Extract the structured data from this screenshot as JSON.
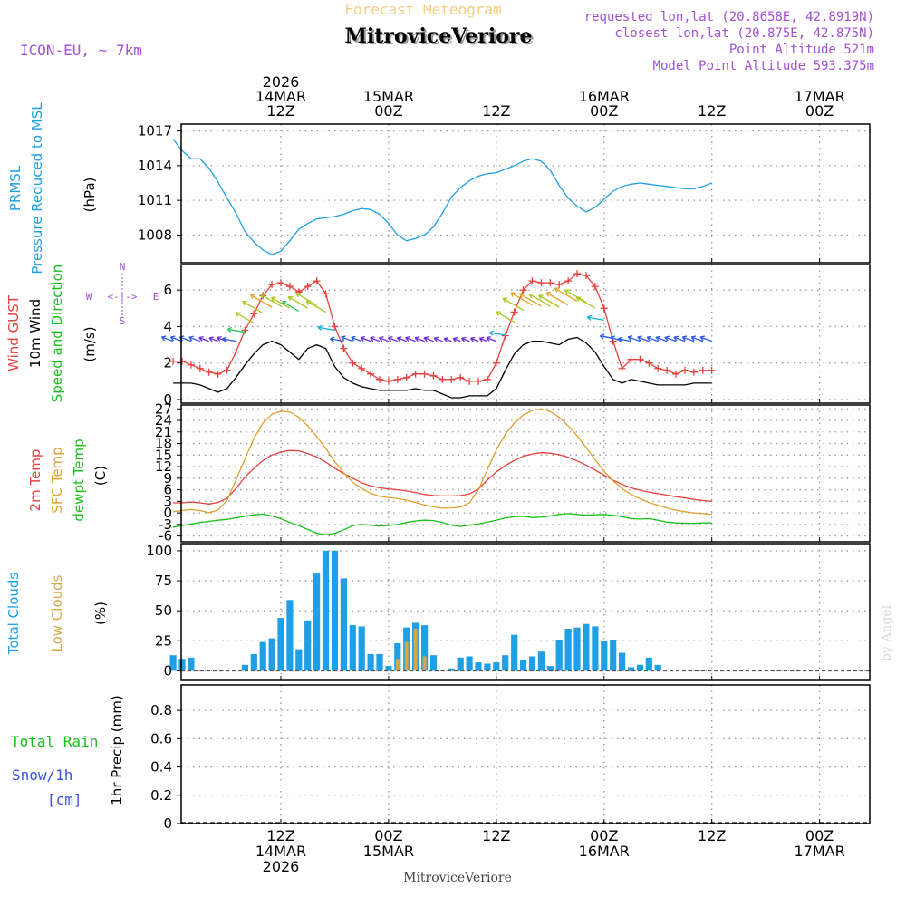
{
  "header": {
    "subtitle": "Forecast Meteogram",
    "title": "MitroviceVeriore",
    "model": "ICON-EU, ~ 7km",
    "info_lines": [
      "requested lon,lat (20.8658E, 42.8919N)",
      "closest lon,lat (20.875E, 42.875N)",
      "Point Altitude 521m",
      "Model Point Altitude 593.375m"
    ],
    "footer_name": "MitroviceVeriore",
    "watermark": "by Angel"
  },
  "colors": {
    "pressure": "#1e9fe6",
    "gust": "#e8403c",
    "wind10m": "#000000",
    "temp2m": "#e8403c",
    "sfc": "#e0a030",
    "dewpt": "#18c018",
    "total_cloud": "#1e9fe6",
    "low_cloud": "#d4a84a",
    "purple": "#a24fd6",
    "green": "#18c018",
    "blue": "#3a55e0"
  },
  "chart_data": {
    "type": "meteogram",
    "x_hours": [
      -12,
      48
    ],
    "top_ticks": [
      {
        "h": 0,
        "lines": [
          "2026",
          "14MAR",
          "12Z"
        ]
      },
      {
        "h": 12,
        "lines": [
          "15MAR",
          "00Z"
        ]
      },
      {
        "h": 24,
        "lines": [
          "12Z"
        ]
      },
      {
        "h": 36,
        "lines": [
          "16MAR",
          "00Z"
        ]
      },
      {
        "h": 48,
        "lines": [
          "12Z"
        ]
      },
      {
        "h": 60,
        "lines": [
          "17MAR",
          "00Z"
        ]
      }
    ],
    "bottom_ticks": [
      {
        "h": 0,
        "lines": [
          "12Z",
          "14MAR",
          "2026"
        ]
      },
      {
        "h": 12,
        "lines": [
          "00Z",
          "15MAR"
        ]
      },
      {
        "h": 24,
        "lines": [
          "12Z"
        ]
      },
      {
        "h": 36,
        "lines": [
          "00Z",
          "16MAR"
        ]
      },
      {
        "h": 48,
        "lines": [
          "12Z"
        ]
      },
      {
        "h": 60,
        "lines": [
          "00Z",
          "17MAR"
        ]
      }
    ],
    "panels": [
      {
        "id": "pressure",
        "labels": [
          "PRMSL",
          "Pressure Reduced to MSL"
        ],
        "units": "(hPa)",
        "ylim": [
          1005.6,
          1017.6
        ],
        "yticks": [
          1008,
          1011,
          1014,
          1017
        ],
        "series": [
          {
            "name": "PRMSL",
            "color": "#1e9fe6",
            "values": [
              1016.3,
              1015.3,
              1014.6,
              1014.6,
              1013.8,
              1012.6,
              1011.2,
              1009.9,
              1008.3,
              1007.4,
              1006.7,
              1006.3,
              1006.6,
              1007.5,
              1008.5,
              1009.0,
              1009.4,
              1009.5,
              1009.6,
              1009.8,
              1010.1,
              1010.3,
              1010.2,
              1009.8,
              1009.0,
              1008.0,
              1007.5,
              1007.7,
              1008.0,
              1008.7,
              1009.9,
              1011.3,
              1012.1,
              1012.7,
              1013.1,
              1013.3,
              1013.4,
              1013.7,
              1014.0,
              1014.4,
              1014.6,
              1014.4,
              1013.6,
              1012.3,
              1011.2,
              1010.5,
              1010.0,
              1010.4,
              1011.1,
              1011.8,
              1012.2,
              1012.4,
              1012.5,
              1012.4,
              1012.3,
              1012.2,
              1012.1,
              1012.0,
              1012.0,
              1012.2,
              1012.5
            ]
          }
        ]
      },
      {
        "id": "wind",
        "labels": [
          "Wind GUST",
          "10m Wind",
          "Speed and Direction"
        ],
        "units": "(m/s)",
        "ylim": [
          -0.2,
          7.4
        ],
        "yticks": [
          0,
          2,
          4,
          6
        ],
        "compass": {
          "n": "N",
          "s": "S",
          "w": "W",
          "e": "E",
          "axis": "<-|->"
        },
        "series": [
          {
            "name": "Wind GUST",
            "color": "#e8403c",
            "values": [
              2.1,
              2.1,
              1.9,
              1.7,
              1.5,
              1.4,
              1.6,
              2.6,
              3.8,
              4.7,
              5.7,
              6.3,
              6.4,
              6.2,
              5.9,
              6.2,
              6.5,
              5.8,
              4.0,
              2.8,
              2.0,
              1.7,
              1.4,
              1.1,
              1.0,
              1.1,
              1.2,
              1.4,
              1.4,
              1.3,
              1.1,
              1.1,
              1.2,
              1.0,
              1.0,
              1.1,
              2.0,
              3.5,
              4.8,
              6.0,
              6.5,
              6.4,
              6.4,
              6.3,
              6.5,
              6.9,
              6.8,
              6.2,
              5.0,
              3.2,
              1.7,
              2.2,
              2.2,
              2.0,
              1.7,
              1.6,
              1.4,
              1.6,
              1.5,
              1.6,
              1.6
            ]
          },
          {
            "name": "10m Wind",
            "color": "#000000",
            "values": [
              0.9,
              0.9,
              0.9,
              0.8,
              0.6,
              0.4,
              0.6,
              1.2,
              1.9,
              2.5,
              3.0,
              3.2,
              3.0,
              2.6,
              2.2,
              2.8,
              3.0,
              2.8,
              1.8,
              1.2,
              0.9,
              0.7,
              0.6,
              0.5,
              0.5,
              0.5,
              0.5,
              0.6,
              0.5,
              0.5,
              0.3,
              0.1,
              0.1,
              0.2,
              0.2,
              0.2,
              0.6,
              1.6,
              2.5,
              3.0,
              3.2,
              3.2,
              3.1,
              3.0,
              3.3,
              3.4,
              3.1,
              2.6,
              1.8,
              1.1,
              0.9,
              1.1,
              1.0,
              0.9,
              0.8,
              0.8,
              0.8,
              0.8,
              0.9,
              0.9,
              0.9
            ]
          }
        ]
      },
      {
        "id": "temp",
        "labels": [
          "2m Temp",
          "SFC Temp",
          "dewpt Temp"
        ],
        "units": "(C)",
        "ylim": [
          -7.5,
          28
        ],
        "yticks": [
          -6,
          -3,
          0,
          3,
          6,
          9,
          12,
          15,
          18,
          21,
          24,
          27
        ],
        "series": [
          {
            "name": "2m Temp",
            "color": "#e8403c",
            "values": [
              2.6,
              2.6,
              2.8,
              2.6,
              2.3,
              2.7,
              3.8,
              6.3,
              9.3,
              11.6,
              13.6,
              15.0,
              15.8,
              16.2,
              16.1,
              15.4,
              14.5,
              13.2,
              11.6,
              10.2,
              9.0,
              7.8,
              7.0,
              6.5,
              6.2,
              6.0,
              5.7,
              5.3,
              4.8,
              4.5,
              4.4,
              4.4,
              4.5,
              4.9,
              6.2,
              8.5,
              10.6,
              12.3,
              13.6,
              14.7,
              15.3,
              15.6,
              15.5,
              15.1,
              14.4,
              13.5,
              12.4,
              11.1,
              9.8,
              8.5,
              7.4,
              6.5,
              5.9,
              5.4,
              5.0,
              4.6,
              4.2,
              3.9,
              3.5,
              3.2,
              3.0
            ]
          },
          {
            "name": "SFC Temp",
            "color": "#e0a030",
            "values": [
              0.3,
              0.6,
              0.9,
              0.6,
              0.1,
              0.7,
              3.2,
              8.5,
              14.0,
              19.3,
              23.3,
              25.6,
              26.4,
              26.2,
              24.8,
              22.6,
              19.8,
              16.7,
              13.3,
              10.4,
              8.0,
              6.3,
              5.1,
              4.3,
              4.0,
              3.7,
              3.3,
              2.7,
              2.1,
              1.6,
              1.2,
              1.3,
              1.5,
              2.6,
              6.0,
              11.2,
              16.3,
              20.4,
              23.3,
              25.4,
              26.6,
              27.0,
              26.3,
              24.8,
              22.6,
              20.0,
              17.0,
              13.8,
              10.8,
              8.3,
              6.3,
              4.8,
              3.7,
              2.7,
              2.0,
              1.3,
              0.7,
              0.3,
              0.0,
              -0.2,
              -0.4
            ]
          },
          {
            "name": "dewpt Temp",
            "color": "#18c018",
            "values": [
              -3.7,
              -3.3,
              -2.9,
              -2.5,
              -2.2,
              -1.9,
              -1.7,
              -1.3,
              -0.9,
              -0.5,
              -0.3,
              -0.8,
              -1.5,
              -2.5,
              -3.3,
              -4.3,
              -5.3,
              -5.7,
              -5.3,
              -4.4,
              -3.3,
              -3.0,
              -3.2,
              -3.4,
              -3.3,
              -3.0,
              -2.5,
              -2.1,
              -1.9,
              -2.0,
              -2.5,
              -3.2,
              -3.5,
              -3.2,
              -2.9,
              -2.4,
              -1.9,
              -1.3,
              -1.0,
              -0.9,
              -1.2,
              -1.1,
              -0.8,
              -0.4,
              -0.2,
              -0.4,
              -0.6,
              -0.5,
              -0.4,
              -0.6,
              -1.0,
              -1.5,
              -1.6,
              -1.5,
              -1.9,
              -2.4,
              -2.6,
              -2.7,
              -2.7,
              -2.6,
              -2.6
            ]
          }
        ]
      },
      {
        "id": "clouds",
        "labels": [
          "Total Clouds",
          "Low Clouds"
        ],
        "units": "(%)",
        "ylim": [
          -8,
          106
        ],
        "yticks": [
          0,
          25,
          50,
          75,
          100
        ],
        "total": [
          13,
          10,
          11,
          0,
          0,
          0,
          0,
          0,
          5,
          14,
          24,
          27,
          44,
          59,
          18,
          42,
          81,
          100,
          100,
          77,
          38,
          37,
          14,
          14,
          4,
          23,
          36,
          40,
          38,
          13,
          0,
          2,
          11,
          12,
          7,
          6,
          7,
          13,
          30,
          9,
          12,
          16,
          4,
          26,
          35,
          36,
          39,
          37,
          25,
          26,
          15,
          3,
          5,
          11,
          5,
          0,
          0,
          0,
          0,
          0,
          0
        ],
        "low": [
          0,
          0,
          0,
          0,
          0,
          0,
          0,
          0,
          0,
          0,
          0,
          0,
          0,
          0,
          0,
          0,
          0,
          0,
          0,
          0,
          0,
          0,
          0,
          0,
          0,
          10,
          24,
          35,
          12,
          0,
          0,
          0,
          0,
          0,
          0,
          0,
          0,
          0,
          0,
          0,
          0,
          0,
          0,
          0,
          0,
          0,
          0,
          0,
          0,
          0,
          0,
          0,
          0,
          0,
          0,
          0,
          0,
          0,
          0,
          0,
          0
        ]
      },
      {
        "id": "precip",
        "labels": [
          "Total Rain",
          "Snow/1h",
          "[cm]"
        ],
        "units": "1hr Precip (mm)",
        "ylim": [
          0,
          0.98
        ],
        "yticks": [
          0,
          0.2,
          0.4,
          0.6,
          0.8
        ],
        "values": []
      }
    ]
  }
}
